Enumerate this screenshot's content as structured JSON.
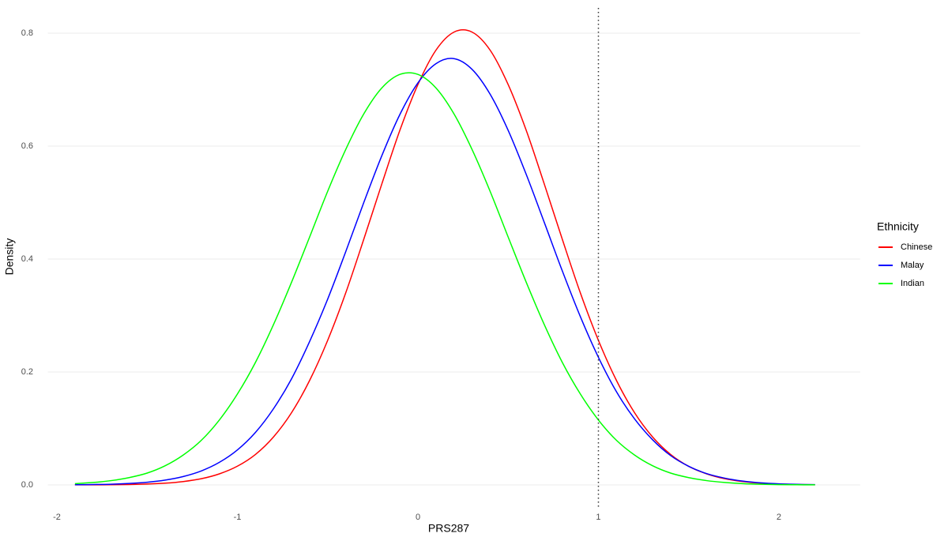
{
  "chart_data": {
    "type": "line",
    "x_label": "PRS287",
    "y_label": "Density",
    "legend_title": "Ethnicity",
    "legend_position": "right",
    "grid": true,
    "xlim": [
      -2.05,
      2.45
    ],
    "ylim": [
      -0.05,
      0.843
    ],
    "xticks": [
      -2,
      -1,
      0,
      1,
      2
    ],
    "yticks": [
      {
        "value": 0,
        "label": "0.0"
      },
      0.2,
      0.4,
      0.6,
      0.8
    ],
    "vline": 1,
    "vline_color": "#333333",
    "x": [
      -1.9,
      -1.8,
      -1.7,
      -1.6,
      -1.5,
      -1.4,
      -1.3,
      -1.2,
      -1.1,
      -1.0,
      -0.9,
      -0.8,
      -0.7,
      -0.6,
      -0.5,
      -0.4,
      -0.3,
      -0.2,
      -0.1,
      0,
      0.1,
      0.2,
      0.3,
      0.4,
      0.5,
      0.6,
      0.7,
      0.8,
      0.9,
      1.0,
      1.1,
      1.2,
      1.3,
      1.4,
      1.5,
      1.6,
      1.7,
      1.8,
      1.9,
      2.0,
      2.1,
      2.2
    ],
    "series": [
      {
        "name": "Chinese",
        "color": "#ff0000",
        "values": [
          0.0001,
          0.0002,
          0.0003,
          0.0007,
          0.0016,
          0.0031,
          0.006,
          0.011,
          0.0196,
          0.0332,
          0.054,
          0.085,
          0.128,
          0.185,
          0.256,
          0.34,
          0.435,
          0.533,
          0.628,
          0.709,
          0.77,
          0.802,
          0.802,
          0.77,
          0.709,
          0.628,
          0.533,
          0.435,
          0.34,
          0.256,
          0.185,
          0.128,
          0.085,
          0.054,
          0.033,
          0.0196,
          0.011,
          0.006,
          0.0031,
          0.0016,
          0.0007,
          0.0003
        ]
      },
      {
        "name": "Malay",
        "color": "#0000ff",
        "values": [
          0.0003,
          0.0007,
          0.0013,
          0.0026,
          0.0048,
          0.0086,
          0.0149,
          0.0248,
          0.04,
          0.062,
          0.093,
          0.135,
          0.188,
          0.254,
          0.329,
          0.413,
          0.5,
          0.583,
          0.656,
          0.712,
          0.746,
          0.755,
          0.736,
          0.692,
          0.628,
          0.55,
          0.465,
          0.379,
          0.298,
          0.226,
          0.165,
          0.117,
          0.08,
          0.052,
          0.033,
          0.02,
          0.012,
          0.0068,
          0.0037,
          0.002,
          0.001,
          0.0005
        ]
      },
      {
        "name": "Indian",
        "color": "#00ff00",
        "values": [
          0.0023,
          0.0043,
          0.0076,
          0.013,
          0.021,
          0.034,
          0.053,
          0.079,
          0.115,
          0.161,
          0.217,
          0.284,
          0.359,
          0.439,
          0.52,
          0.594,
          0.657,
          0.703,
          0.727,
          0.727,
          0.703,
          0.657,
          0.594,
          0.52,
          0.439,
          0.359,
          0.284,
          0.217,
          0.161,
          0.115,
          0.079,
          0.053,
          0.034,
          0.021,
          0.013,
          0.0076,
          0.0043,
          0.0023,
          0.0012,
          0.0006,
          0.0003,
          0.0001
        ]
      }
    ]
  }
}
